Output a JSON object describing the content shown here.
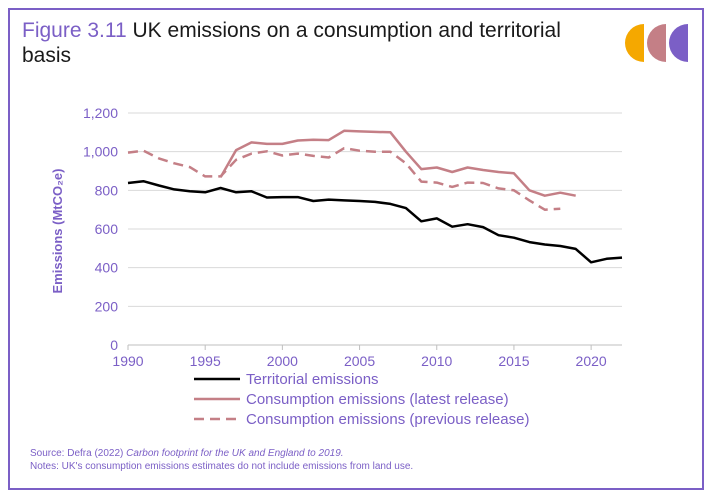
{
  "header": {
    "figure_label": "Figure 3.11",
    "title_text": "UK emissions on a consumption and territorial basis"
  },
  "logo": {
    "colors": [
      "#f5a800",
      "#c47f86",
      "#7b5fc6"
    ]
  },
  "notes": {
    "source_prefix": "Source: Defra (2022) ",
    "source_title": "Carbon footprint for the UK and England to 2019.",
    "notes_text": "Notes: UK's consumption emissions estimates do not include emissions from land use."
  },
  "chart_data": {
    "type": "line",
    "title": "UK emissions on a consumption and territorial basis",
    "ylabel": "Emissions (MtCO₂e)",
    "xlim": [
      1990,
      2022
    ],
    "ylim": [
      0,
      1200
    ],
    "xticks": [
      1990,
      1995,
      2000,
      2005,
      2010,
      2015,
      2020
    ],
    "yticks": [
      0,
      200,
      400,
      600,
      800,
      1000,
      1200
    ],
    "ytick_labels": [
      "0",
      "200",
      "400",
      "600",
      "800",
      "1,000",
      "1,200"
    ],
    "grid": "horizontal",
    "legend_position": "bottom",
    "series": [
      {
        "name": "Territorial emissions",
        "color": "#000000",
        "style": "solid",
        "x": [
          1990,
          1991,
          1992,
          1993,
          1994,
          1995,
          1996,
          1997,
          1998,
          1999,
          2000,
          2001,
          2002,
          2003,
          2004,
          2005,
          2006,
          2007,
          2008,
          2009,
          2010,
          2011,
          2012,
          2013,
          2014,
          2015,
          2016,
          2017,
          2018,
          2019,
          2020,
          2021,
          2022
        ],
        "values": [
          838,
          847,
          825,
          805,
          795,
          790,
          812,
          790,
          795,
          763,
          765,
          765,
          745,
          752,
          748,
          745,
          740,
          730,
          708,
          640,
          655,
          612,
          625,
          610,
          568,
          555,
          532,
          520,
          512,
          497,
          428,
          446,
          452
        ]
      },
      {
        "name": "Consumption emissions (latest release)",
        "color": "#c47f86",
        "style": "solid",
        "x": [
          1996,
          1997,
          1998,
          1999,
          2000,
          2001,
          2002,
          2003,
          2004,
          2005,
          2006,
          2007,
          2008,
          2009,
          2010,
          2011,
          2012,
          2013,
          2014,
          2015,
          2016,
          2017,
          2018,
          2019
        ],
        "values": [
          868,
          1008,
          1048,
          1040,
          1040,
          1058,
          1062,
          1060,
          1108,
          1105,
          1102,
          1100,
          1000,
          910,
          918,
          895,
          918,
          905,
          895,
          888,
          800,
          772,
          788,
          772
        ]
      },
      {
        "name": "Consumption emissions (previous release)",
        "color": "#c47f86",
        "style": "dashed",
        "x": [
          1990,
          1991,
          1992,
          1993,
          1994,
          1995,
          1996,
          1997,
          1998,
          1999,
          2000,
          2001,
          2002,
          2003,
          2004,
          2005,
          2006,
          2007,
          2008,
          2009,
          2010,
          2011,
          2012,
          2013,
          2014,
          2015,
          2016,
          2017,
          2018
        ],
        "values": [
          995,
          1005,
          965,
          940,
          920,
          872,
          872,
          958,
          990,
          1002,
          980,
          990,
          978,
          970,
          1018,
          1005,
          1000,
          1000,
          940,
          845,
          840,
          818,
          840,
          838,
          810,
          800,
          748,
          700,
          705
        ]
      }
    ]
  }
}
